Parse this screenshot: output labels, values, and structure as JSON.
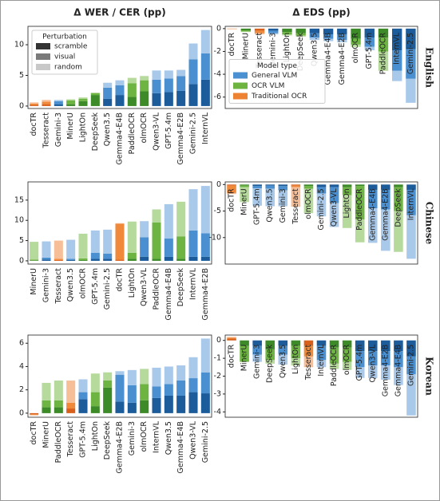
{
  "model_types": [
    {
      "name": "General VLM",
      "colors": [
        "#1c5c9a",
        "#4a8fd0",
        "#a9c9eb"
      ],
      "legend_color": "#4b91d2"
    },
    {
      "name": "OCR VLM",
      "colors": [
        "#3d8a28",
        "#6db443",
        "#b6da9b"
      ],
      "legend_color": "#6cb33f"
    },
    {
      "name": "Traditional OCR",
      "colors": [
        "#d9601a",
        "#f08a3a",
        "#f7bf98"
      ],
      "legend_color": "#ee8233"
    }
  ],
  "chart_data": [
    {
      "type": "bar",
      "stacked": true,
      "title": "Δ WER / CER (pp)",
      "legend": {
        "title": "Perturbation",
        "loc": "upper left",
        "colors": [
          "#333333",
          "#7a7a7a",
          "#c8c8c8"
        ]
      },
      "categories": [
        "docTR",
        "Tesseract",
        "Gemini-3",
        "MinerU",
        "LightOn",
        "DeepSeek",
        "Qwen3.5",
        "Gemma4-E4B",
        "PaddleOCR",
        "olmOCR",
        "Qwen3-VL",
        "GPT-5.4m",
        "Gemma4-E2B",
        "Gemini-2.5",
        "InternVL"
      ],
      "category_types": [
        2,
        2,
        0,
        1,
        1,
        1,
        0,
        0,
        1,
        1,
        0,
        0,
        0,
        0,
        0
      ],
      "series": [
        {
          "name": "scramble",
          "values": [
            0.2,
            0.3,
            0.3,
            0.3,
            0.8,
            1.8,
            1.2,
            1.8,
            1.5,
            2.4,
            2.1,
            2.3,
            2.5,
            3.6,
            4.3
          ]
        },
        {
          "name": "visual",
          "values": [
            0.2,
            0.4,
            0.5,
            0.6,
            0.4,
            0.3,
            1.8,
            1.6,
            2.2,
            1.8,
            2.2,
            2.2,
            2.4,
            4.0,
            4.3
          ]
        },
        {
          "name": "random",
          "values": [
            0.2,
            0.3,
            0.2,
            0.2,
            0.2,
            0.1,
            0.8,
            0.8,
            0.9,
            0.7,
            1.5,
            1.3,
            1.0,
            2.6,
            3.8
          ]
        }
      ],
      "ylim": [
        -0.4,
        13
      ],
      "yticks": [
        0,
        5,
        10
      ]
    },
    {
      "type": "bar",
      "stacked": true,
      "title": "Δ EDS (pp)",
      "row_label": "English",
      "legend": {
        "title": "Model type",
        "loc": "center left"
      },
      "categories": [
        "docTR",
        "MinerU",
        "Tesseract",
        "Gemini-3",
        "LightOn",
        "DeepSeek",
        "Qwen3.5",
        "Gemma4-E4B",
        "Gemma4-E2B",
        "olmOCR",
        "GPT-5.4m",
        "PaddleOCR",
        "InternVL",
        "Gemini-2.5"
      ],
      "category_types": [
        2,
        1,
        2,
        0,
        1,
        1,
        0,
        0,
        0,
        1,
        0,
        1,
        0,
        0
      ],
      "series": [
        {
          "values": [
            -0.02,
            -0.15,
            -0.2,
            -0.2,
            -0.3,
            -0.4,
            -0.4,
            -0.5,
            -0.5,
            -0.9,
            -0.8,
            -0.8,
            -1.9,
            -1.8
          ]
        },
        {
          "values": [
            -0.02,
            -0.1,
            -0.2,
            -0.2,
            -0.2,
            -0.2,
            -0.4,
            -0.4,
            -0.5,
            -0.5,
            -0.8,
            -1.2,
            -1.8,
            -2.6
          ]
        },
        {
          "values": [
            -0.01,
            -0.05,
            -0.1,
            -0.1,
            -0.1,
            -0.1,
            -0.2,
            -0.2,
            -0.2,
            -0.2,
            -0.3,
            -1.7,
            -0.9,
            -2.1
          ]
        }
      ],
      "ylim": [
        -7,
        0.2
      ],
      "yticks": [
        0,
        -2,
        -4,
        -6
      ]
    },
    {
      "type": "bar",
      "stacked": true,
      "categories": [
        "MinerU",
        "Gemini-3",
        "Tesseract",
        "Qwen3.5",
        "olmOCR",
        "GPT-5.4m",
        "Gemini-2.5",
        "docTR",
        "LightOn",
        "Qwen3-VL",
        "PaddleOCR",
        "Gemma4-E4B",
        "DeepSeek",
        "InternVL",
        "Gemma4-E2B"
      ],
      "category_types": [
        1,
        0,
        2,
        0,
        1,
        0,
        0,
        2,
        1,
        0,
        1,
        0,
        1,
        0,
        0
      ],
      "series": [
        {
          "values": [
            0.1,
            0.3,
            0.2,
            0.2,
            0.2,
            0.5,
            0.5,
            0.3,
            0.5,
            1.0,
            0.5,
            1.0,
            0.5,
            1.0,
            1.0
          ]
        },
        {
          "values": [
            0.2,
            0.5,
            0.3,
            0.3,
            0.4,
            1.5,
            1.3,
            8.9,
            1.5,
            4.8,
            9.0,
            4.5,
            5.5,
            6.5,
            5.8
          ]
        },
        {
          "values": [
            4.4,
            4.0,
            4.5,
            4.7,
            6.1,
            5.5,
            5.9,
            0.1,
            7.7,
            4.0,
            3.2,
            8.5,
            8.6,
            10.2,
            11.7
          ]
        }
      ],
      "ylim": [
        -0.8,
        19.5
      ],
      "yticks": [
        0,
        5,
        10,
        15
      ]
    },
    {
      "type": "bar",
      "stacked": true,
      "row_label": "Chinese",
      "categories": [
        "docTR",
        "MinerU",
        "GPT-5.4m",
        "Qwen3.5",
        "Gemini-3",
        "Tesseract",
        "olmOCR",
        "Gemini-2.5",
        "Qwen3-VL",
        "LightOn",
        "PaddleOCR",
        "Gemma4-E4B",
        "Gemma4-E2B",
        "DeepSeek",
        "InternVL"
      ],
      "category_types": [
        2,
        1,
        0,
        0,
        0,
        2,
        1,
        0,
        0,
        1,
        1,
        0,
        0,
        1,
        0
      ],
      "series": [
        {
          "values": [
            -0.2,
            -0.2,
            -0.3,
            -0.2,
            -0.3,
            -0.2,
            -0.3,
            -0.5,
            -0.5,
            -0.5,
            -0.3,
            -1.0,
            -1.0,
            -0.5,
            -1.0
          ]
        },
        {
          "values": [
            -1.4,
            -0.3,
            -0.4,
            -0.6,
            -0.8,
            -0.3,
            -0.5,
            -1.2,
            -3.0,
            -1.5,
            -6.3,
            -3.5,
            -3.7,
            -4.5,
            -4.8
          ]
        },
        {
          "values": [
            -0.2,
            -2.8,
            -3.3,
            -3.3,
            -3.0,
            -3.7,
            -4.6,
            -4.3,
            -4.5,
            -6.2,
            -4.3,
            -6.5,
            -7.8,
            -7.7,
            -8.2
          ]
        }
      ],
      "ylim": [
        -15,
        0.5
      ],
      "yticks": [
        0,
        -5,
        -10
      ]
    },
    {
      "type": "bar",
      "stacked": true,
      "categories": [
        "docTR",
        "MinerU",
        "PaddleOCR",
        "Tesseract",
        "GPT-5.4m",
        "LightOn",
        "DeepSeek",
        "Gemma4-E2B",
        "Gemini-3",
        "olmOCR",
        "InternVL",
        "Qwen3.5",
        "Gemma4-E4B",
        "Qwen3-VL",
        "Gemini-2.5"
      ],
      "category_types": [
        2,
        1,
        1,
        2,
        0,
        1,
        1,
        0,
        0,
        1,
        0,
        0,
        0,
        0,
        0
      ],
      "series": [
        {
          "values": [
            -0.1,
            0.5,
            0.5,
            0.4,
            1.2,
            0.6,
            2.2,
            1.0,
            0.9,
            1.1,
            1.3,
            1.5,
            1.5,
            1.8,
            1.7
          ]
        },
        {
          "values": [
            -0.05,
            0.6,
            0.6,
            0.5,
            0.6,
            1.2,
            0.6,
            2.3,
            1.5,
            1.4,
            1.0,
            1.0,
            1.3,
            1.2,
            1.8
          ]
        },
        {
          "values": [
            -0.05,
            1.5,
            1.7,
            1.9,
            1.1,
            1.6,
            0.7,
            0.3,
            1.3,
            1.3,
            1.6,
            1.5,
            1.3,
            1.8,
            2.9
          ]
        }
      ],
      "ylim": [
        -0.35,
        6.7
      ],
      "yticks": [
        0,
        2,
        4,
        6
      ]
    },
    {
      "type": "bar",
      "stacked": true,
      "row_label": "Korean",
      "categories": [
        "docTR",
        "MinerU",
        "Gemini-3",
        "DeepSeek",
        "Qwen3.5",
        "LightOn",
        "Tesseract",
        "InternVL",
        "PaddleOCR",
        "olmOCR",
        "GPT-5.4m",
        "Qwen3-VL",
        "Gemma4-E2B",
        "Gemma4-E4B",
        "Gemini-2.5"
      ],
      "category_types": [
        2,
        1,
        0,
        1,
        0,
        1,
        2,
        0,
        1,
        1,
        0,
        0,
        0,
        0,
        0
      ],
      "series": [
        {
          "values": [
            0.1,
            -0.3,
            -0.3,
            -0.5,
            -0.3,
            -0.3,
            -0.3,
            -0.3,
            -0.4,
            -0.4,
            -0.6,
            -0.6,
            -0.6,
            -0.6,
            -0.9
          ]
        },
        {
          "values": [
            0.05,
            -0.9,
            -0.5,
            -0.6,
            -0.5,
            -0.7,
            -0.6,
            -0.8,
            -0.9,
            -0.8,
            -0.9,
            -0.8,
            -0.8,
            -0.9,
            -1.0
          ]
        },
        {
          "values": [
            0.05,
            0,
            -0.4,
            -0.2,
            -0.55,
            -0.4,
            -0.6,
            -0.4,
            -0.3,
            -0.45,
            -0.6,
            -0.7,
            -0.8,
            -1.0,
            -2.3
          ]
        }
      ],
      "ylim": [
        -4.3,
        0.3
      ],
      "yticks": [
        0,
        -1,
        -2,
        -3,
        -4
      ]
    }
  ]
}
